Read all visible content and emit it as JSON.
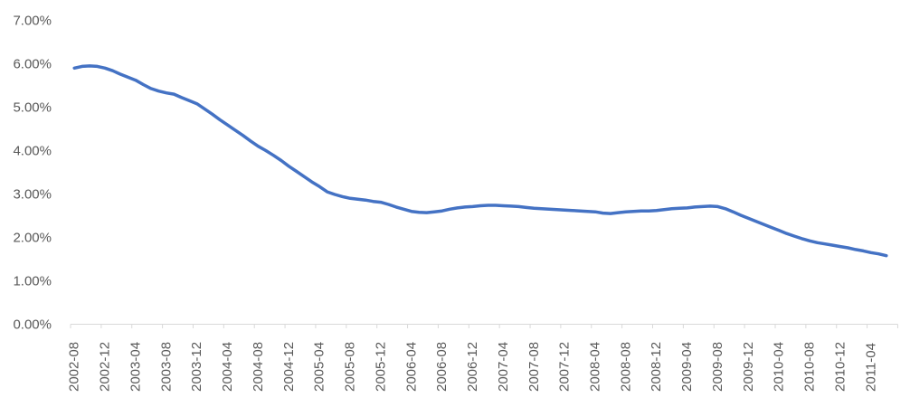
{
  "chart_data": {
    "type": "line",
    "title": "",
    "legend": "none",
    "grid": "off",
    "y_unit": "%",
    "ylim": [
      0,
      7
    ],
    "y_tick_step": 1,
    "y_tick_labels": [
      "0.00%",
      "1.00%",
      "2.00%",
      "3.00%",
      "4.00%",
      "5.00%",
      "6.00%",
      "7.00%"
    ],
    "x_tick_labels": [
      "2002-08",
      "2002-12",
      "2003-04",
      "2003-08",
      "2003-12",
      "2004-04",
      "2004-08",
      "2004-12",
      "2005-04",
      "2005-08",
      "2005-12",
      "2006-04",
      "2006-08",
      "2006-12",
      "2007-04",
      "2007-08",
      "2007-12",
      "2008-04",
      "2008-08",
      "2008-12",
      "2009-04",
      "2009-08",
      "2009-12",
      "2010-04",
      "2010-08",
      "2010-12",
      "2011-04"
    ],
    "x_tick_every_n_points": 4,
    "x": [
      "2002-08",
      "2002-09",
      "2002-10",
      "2002-11",
      "2002-12",
      "2003-01",
      "2003-02",
      "2003-03",
      "2003-04",
      "2003-05",
      "2003-06",
      "2003-07",
      "2003-08",
      "2003-09",
      "2003-10",
      "2003-11",
      "2003-12",
      "2004-01",
      "2004-02",
      "2004-03",
      "2004-04",
      "2004-05",
      "2004-06",
      "2004-07",
      "2004-08",
      "2004-09",
      "2004-10",
      "2004-11",
      "2004-12",
      "2005-01",
      "2005-02",
      "2005-03",
      "2005-04",
      "2005-05",
      "2005-06",
      "2005-07",
      "2005-08",
      "2005-09",
      "2005-10",
      "2005-11",
      "2005-12",
      "2006-01",
      "2006-02",
      "2006-03",
      "2006-04",
      "2006-05",
      "2006-06",
      "2006-07",
      "2006-08",
      "2006-09",
      "2006-10",
      "2006-11",
      "2006-12",
      "2007-01",
      "2007-02",
      "2007-03",
      "2007-04",
      "2007-05",
      "2007-06",
      "2007-07",
      "2007-08",
      "2007-09",
      "2007-10",
      "2007-11",
      "2007-12",
      "2008-01",
      "2008-02",
      "2008-03",
      "2008-04",
      "2008-05",
      "2008-06",
      "2008-07",
      "2008-08",
      "2008-09",
      "2008-10",
      "2008-11",
      "2008-12",
      "2009-01",
      "2009-02",
      "2009-03",
      "2009-04",
      "2009-05",
      "2009-06",
      "2009-07",
      "2009-08",
      "2009-09",
      "2009-10",
      "2009-11",
      "2009-12",
      "2010-01",
      "2010-02",
      "2010-03",
      "2010-04",
      "2010-05",
      "2010-06",
      "2010-07",
      "2010-08",
      "2010-09",
      "2010-10",
      "2010-11",
      "2010-12",
      "2011-01",
      "2011-02",
      "2011-03",
      "2011-04",
      "2011-05",
      "2011-06"
    ],
    "values": [
      5.9,
      5.94,
      5.95,
      5.94,
      5.9,
      5.84,
      5.76,
      5.69,
      5.62,
      5.52,
      5.43,
      5.37,
      5.33,
      5.3,
      5.22,
      5.15,
      5.08,
      4.96,
      4.84,
      4.71,
      4.59,
      4.47,
      4.35,
      4.22,
      4.1,
      4.0,
      3.89,
      3.77,
      3.64,
      3.52,
      3.4,
      3.28,
      3.17,
      3.05,
      2.99,
      2.94,
      2.9,
      2.88,
      2.86,
      2.83,
      2.81,
      2.76,
      2.7,
      2.65,
      2.6,
      2.58,
      2.57,
      2.59,
      2.61,
      2.65,
      2.68,
      2.7,
      2.71,
      2.73,
      2.74,
      2.74,
      2.73,
      2.72,
      2.71,
      2.69,
      2.67,
      2.66,
      2.65,
      2.64,
      2.63,
      2.62,
      2.61,
      2.6,
      2.59,
      2.56,
      2.55,
      2.57,
      2.59,
      2.6,
      2.61,
      2.61,
      2.62,
      2.64,
      2.66,
      2.67,
      2.68,
      2.7,
      2.71,
      2.72,
      2.71,
      2.66,
      2.59,
      2.51,
      2.44,
      2.37,
      2.3,
      2.23,
      2.16,
      2.09,
      2.03,
      1.97,
      1.92,
      1.88,
      1.85,
      1.82,
      1.79,
      1.76,
      1.72,
      1.69,
      1.65,
      1.62,
      1.58
    ],
    "colors": {
      "line": "#4472C4",
      "axis": "#D9D9D9",
      "tick_label": "#595959",
      "background": "#FFFFFF"
    }
  }
}
